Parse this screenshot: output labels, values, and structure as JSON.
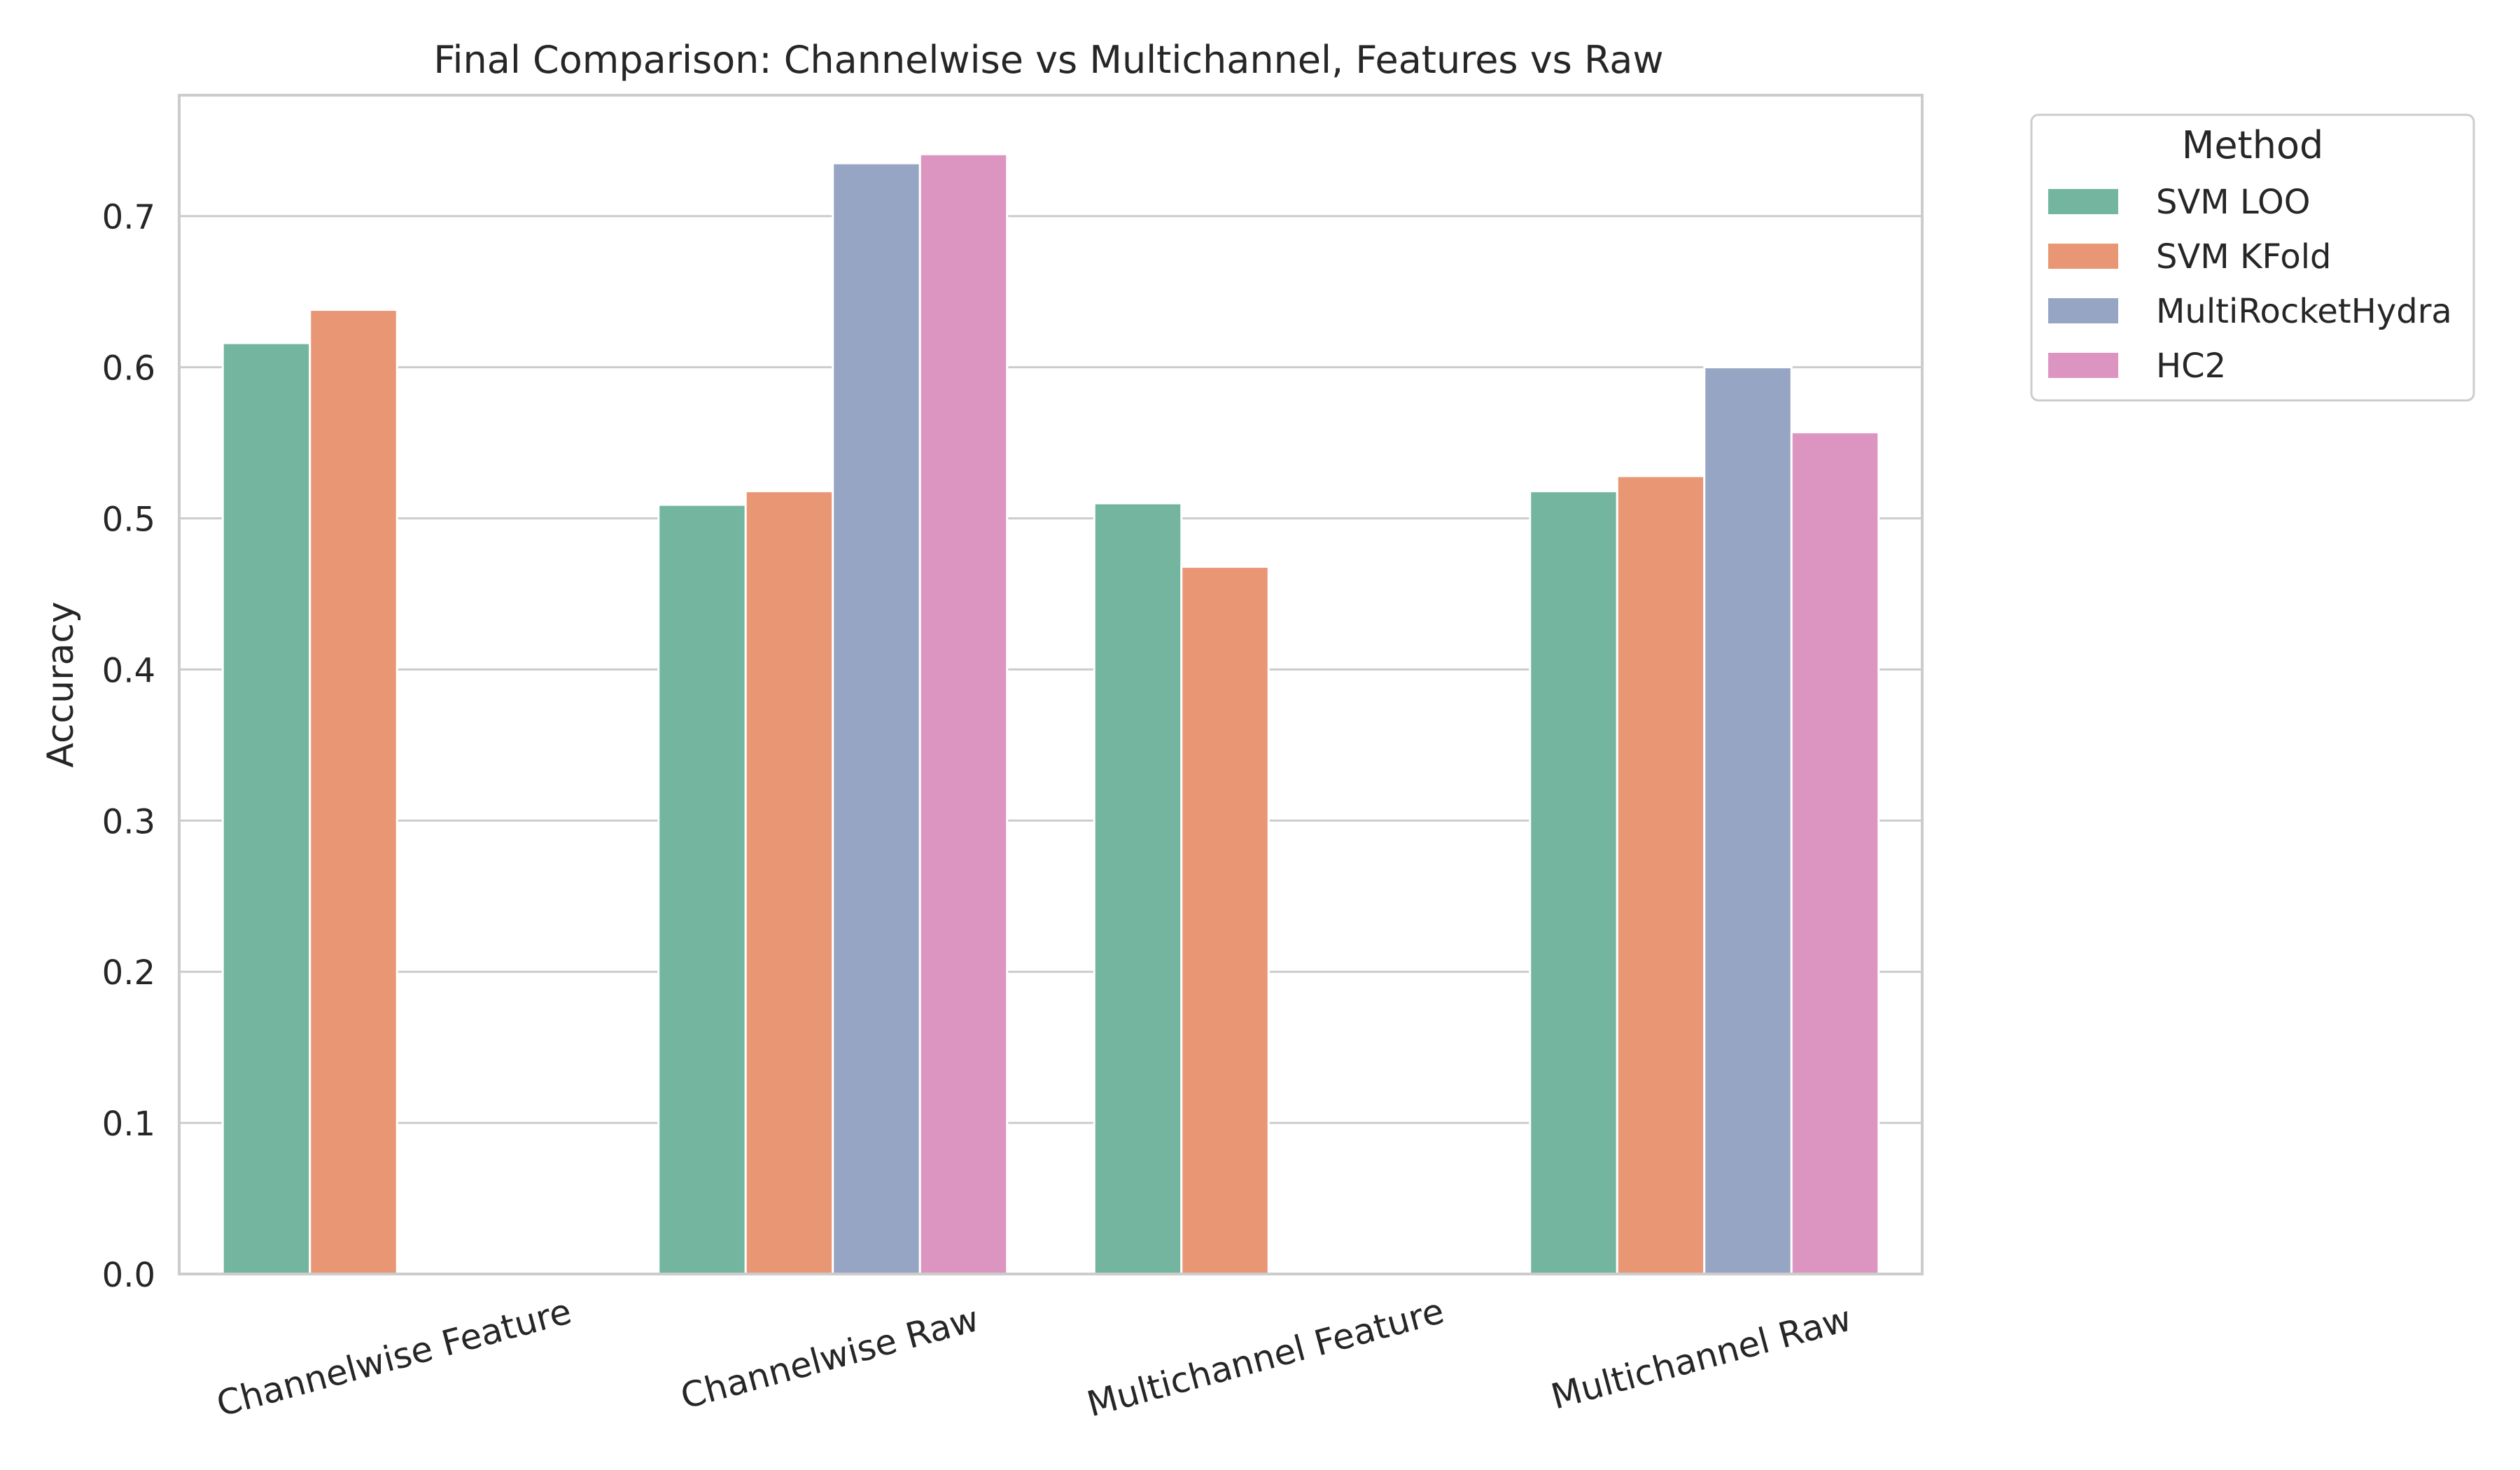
{
  "chart_data": {
    "type": "bar",
    "title": "Final Comparison: Channelwise vs Multichannel, Features vs Raw",
    "xlabel": "",
    "ylabel": "Accuracy",
    "categories": [
      "Channelwise Feature",
      "Channelwise Raw",
      "Multichannel Feature",
      "Multichannel Raw"
    ],
    "ylim": [
      0,
      0.78
    ],
    "yticks": [
      0.0,
      0.1,
      0.2,
      0.3,
      0.4,
      0.5,
      0.6,
      0.7
    ],
    "ytick_labels": [
      "0.0",
      "0.1",
      "0.2",
      "0.3",
      "0.4",
      "0.5",
      "0.6",
      "0.7"
    ],
    "grid": true,
    "legend": {
      "title": "Method",
      "placement": "outside-top-right"
    },
    "series": [
      {
        "name": "SVM LOO",
        "color": "#73b59f",
        "values": [
          0.616,
          0.509,
          0.51,
          0.518
        ]
      },
      {
        "name": "SVM KFold",
        "color": "#e99675",
        "values": [
          0.638,
          0.518,
          0.468,
          0.528
        ]
      },
      {
        "name": "MultiRocketHydra",
        "color": "#96a5c3",
        "values": [
          null,
          0.735,
          null,
          0.6
        ]
      },
      {
        "name": "HC2",
        "color": "#dc95c0",
        "values": [
          null,
          0.741,
          null,
          0.557
        ]
      }
    ]
  }
}
